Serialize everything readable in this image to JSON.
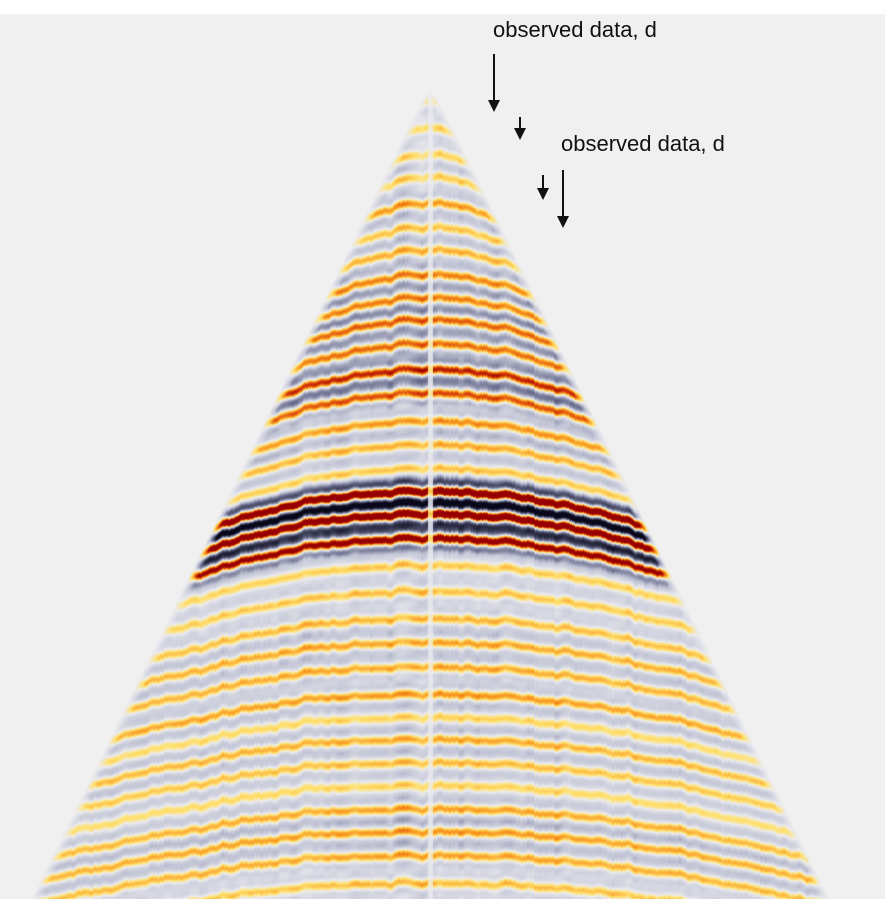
{
  "annotations": {
    "label_1": "observed data, d",
    "label_2": "observed data, d"
  },
  "colors": {
    "background": "#f0f0f0",
    "positive_strong": "#a40000",
    "positive_mid": "#f06a1a",
    "positive_weak": "#ffd23a",
    "negative_strong": "#08081e",
    "negative_mid": "#6a6e8c",
    "negative_weak": "#c8cad8",
    "arrow": "#111111"
  }
}
